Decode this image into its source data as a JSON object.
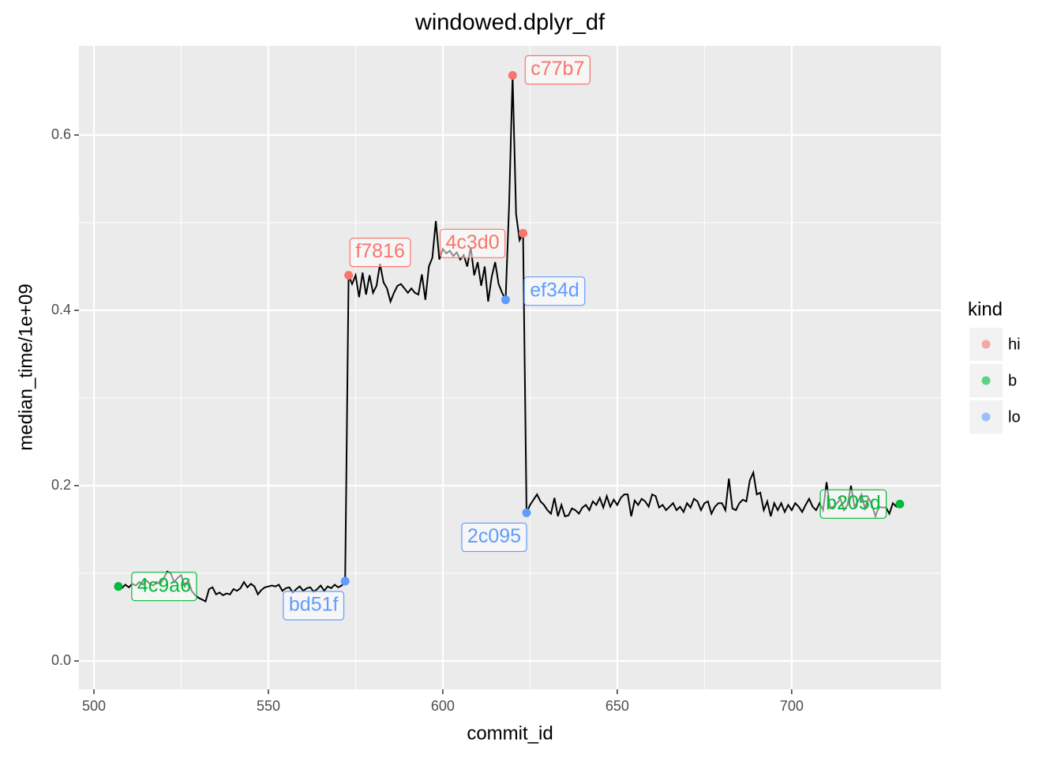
{
  "chart_data": {
    "type": "line",
    "title": "windowed.dplyr_df",
    "x_label": "commit_id",
    "y_label": "median_time/1e+09",
    "x": [
      507,
      508,
      509,
      510,
      511,
      512,
      513,
      514,
      515,
      516,
      517,
      518,
      519,
      520,
      521,
      522,
      523,
      524,
      525,
      526,
      527,
      528,
      529,
      530,
      531,
      532,
      533,
      534,
      535,
      536,
      537,
      538,
      539,
      540,
      541,
      542,
      543,
      544,
      545,
      546,
      547,
      548,
      549,
      550,
      551,
      552,
      553,
      554,
      555,
      556,
      557,
      558,
      559,
      560,
      561,
      562,
      563,
      564,
      565,
      566,
      567,
      568,
      569,
      570,
      571,
      572,
      573,
      574,
      575,
      576,
      577,
      578,
      579,
      580,
      581,
      582,
      583,
      584,
      585,
      586,
      587,
      588,
      589,
      590,
      591,
      592,
      593,
      594,
      595,
      596,
      597,
      598,
      599,
      600,
      601,
      602,
      603,
      604,
      605,
      606,
      607,
      608,
      609,
      610,
      611,
      612,
      613,
      614,
      615,
      616,
      617,
      618,
      619,
      620,
      621,
      622,
      623,
      624,
      625,
      626,
      627,
      628,
      629,
      630,
      631,
      632,
      633,
      634,
      635,
      636,
      637,
      638,
      639,
      640,
      641,
      642,
      643,
      644,
      645,
      646,
      647,
      648,
      649,
      650,
      651,
      652,
      653,
      654,
      655,
      656,
      657,
      658,
      659,
      660,
      661,
      662,
      663,
      664,
      665,
      666,
      667,
      668,
      669,
      670,
      671,
      672,
      673,
      674,
      675,
      676,
      677,
      678,
      679,
      680,
      681,
      682,
      683,
      684,
      685,
      686,
      687,
      688,
      689,
      690,
      691,
      692,
      693,
      694,
      695,
      696,
      697,
      698,
      699,
      700,
      701,
      702,
      703,
      704,
      705,
      706,
      707,
      708,
      709,
      710,
      711,
      712,
      713,
      714,
      715,
      716,
      717,
      718,
      719,
      720,
      721,
      722,
      723,
      724,
      725,
      726,
      727,
      728,
      729,
      730,
      731
    ],
    "series": [
      {
        "color": "#000000",
        "values": [
          0.085,
          0.083,
          0.087,
          0.084,
          0.088,
          0.086,
          0.09,
          0.087,
          0.092,
          0.088,
          0.086,
          0.09,
          0.088,
          0.094,
          0.102,
          0.1,
          0.09,
          0.095,
          0.098,
          0.085,
          0.092,
          0.08,
          0.075,
          0.072,
          0.07,
          0.068,
          0.082,
          0.084,
          0.076,
          0.078,
          0.075,
          0.077,
          0.076,
          0.082,
          0.08,
          0.083,
          0.09,
          0.084,
          0.088,
          0.085,
          0.076,
          0.081,
          0.084,
          0.085,
          0.086,
          0.085,
          0.087,
          0.08,
          0.083,
          0.084,
          0.078,
          0.082,
          0.085,
          0.08,
          0.083,
          0.084,
          0.079,
          0.082,
          0.086,
          0.08,
          0.085,
          0.083,
          0.087,
          0.084,
          0.086,
          0.091,
          0.44,
          0.43,
          0.44,
          0.415,
          0.443,
          0.418,
          0.44,
          0.42,
          0.428,
          0.453,
          0.432,
          0.425,
          0.41,
          0.42,
          0.428,
          0.43,
          0.425,
          0.42,
          0.425,
          0.42,
          0.418,
          0.441,
          0.412,
          0.45,
          0.46,
          0.502,
          0.458,
          0.47,
          0.465,
          0.468,
          0.462,
          0.466,
          0.458,
          0.463,
          0.45,
          0.472,
          0.44,
          0.455,
          0.428,
          0.45,
          0.41,
          0.438,
          0.455,
          0.43,
          0.42,
          0.412,
          0.52,
          0.668,
          0.51,
          0.48,
          0.488,
          0.169,
          0.178,
          0.184,
          0.19,
          0.182,
          0.178,
          0.172,
          0.168,
          0.186,
          0.165,
          0.178,
          0.165,
          0.166,
          0.174,
          0.172,
          0.168,
          0.175,
          0.178,
          0.172,
          0.182,
          0.178,
          0.186,
          0.175,
          0.188,
          0.176,
          0.184,
          0.178,
          0.186,
          0.19,
          0.19,
          0.165,
          0.183,
          0.178,
          0.185,
          0.182,
          0.176,
          0.19,
          0.188,
          0.175,
          0.178,
          0.172,
          0.176,
          0.18,
          0.172,
          0.176,
          0.17,
          0.18,
          0.175,
          0.185,
          0.182,
          0.172,
          0.18,
          0.182,
          0.168,
          0.176,
          0.18,
          0.18,
          0.172,
          0.208,
          0.174,
          0.172,
          0.18,
          0.184,
          0.182,
          0.206,
          0.215,
          0.19,
          0.192,
          0.172,
          0.182,
          0.165,
          0.18,
          0.172,
          0.18,
          0.17,
          0.178,
          0.172,
          0.18,
          0.176,
          0.17,
          0.178,
          0.185,
          0.176,
          0.172,
          0.18,
          0.172,
          0.204,
          0.175,
          0.176,
          0.18,
          0.185,
          0.172,
          0.178,
          0.2,
          0.176,
          0.182,
          0.19,
          0.174,
          0.186,
          0.178,
          0.165,
          0.176,
          0.175,
          0.175,
          0.168,
          0.18,
          0.176,
          0.179
        ]
      }
    ],
    "points": [
      {
        "label": "4c9a6",
        "kind": "b",
        "x": 507,
        "y": 0.085
      },
      {
        "label": "bd51f",
        "kind": "lo",
        "x": 572,
        "y": 0.091
      },
      {
        "label": "f7816",
        "kind": "hi",
        "x": 573,
        "y": 0.44
      },
      {
        "label": "4c3d0",
        "kind": "hi",
        "x": 623,
        "y": 0.488
      },
      {
        "label": "c77b7",
        "kind": "hi",
        "x": 620,
        "y": 0.668
      },
      {
        "label": "ef34d",
        "kind": "lo",
        "x": 618,
        "y": 0.412
      },
      {
        "label": "2c095",
        "kind": "lo",
        "x": 624,
        "y": 0.169
      },
      {
        "label": "b205d",
        "kind": "b",
        "x": 731,
        "y": 0.179
      }
    ],
    "legend": {
      "title": "kind",
      "entries": [
        {
          "name": "hi",
          "color": "#F8766D"
        },
        {
          "name": "b",
          "color": "#00BA38"
        },
        {
          "name": "lo",
          "color": "#619CFF"
        }
      ]
    },
    "xlim": [
      495.7,
      742.8
    ],
    "xticks": [
      500,
      550,
      600,
      650,
      700
    ],
    "ylim": [
      -0.0324,
      0.7018
    ],
    "yticks": [
      {
        "value": 0,
        "label": "0.0"
      },
      0.2,
      0.4,
      0.6
    ],
    "grid": true
  }
}
